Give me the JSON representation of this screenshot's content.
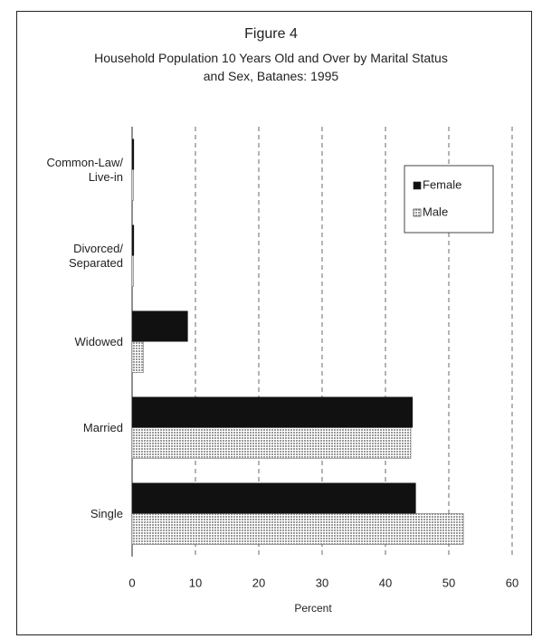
{
  "chart_data": {
    "type": "barh",
    "title": "Figure 4",
    "subtitle": "Household Population 10 Years Old and Over  by Marital Status\nand Sex, Batanes: 1995",
    "categories": [
      "Common-Law/\nLive-in",
      "Divorced/\nSeparated",
      "Widowed",
      "Married",
      "Single"
    ],
    "series": [
      {
        "name": "Female",
        "color": "#111111",
        "values": [
          0.3,
          0.3,
          8.8,
          44.3,
          44.8
        ]
      },
      {
        "name": "Male",
        "color": "#9a9a9a",
        "values": [
          0.2,
          0.2,
          1.8,
          44.0,
          52.3
        ]
      }
    ],
    "xlabel": "Percent",
    "xlim": [
      0,
      60
    ],
    "xticks": [
      0,
      10,
      20,
      30,
      40,
      50,
      60
    ],
    "grid": true,
    "legend": "upper right"
  }
}
